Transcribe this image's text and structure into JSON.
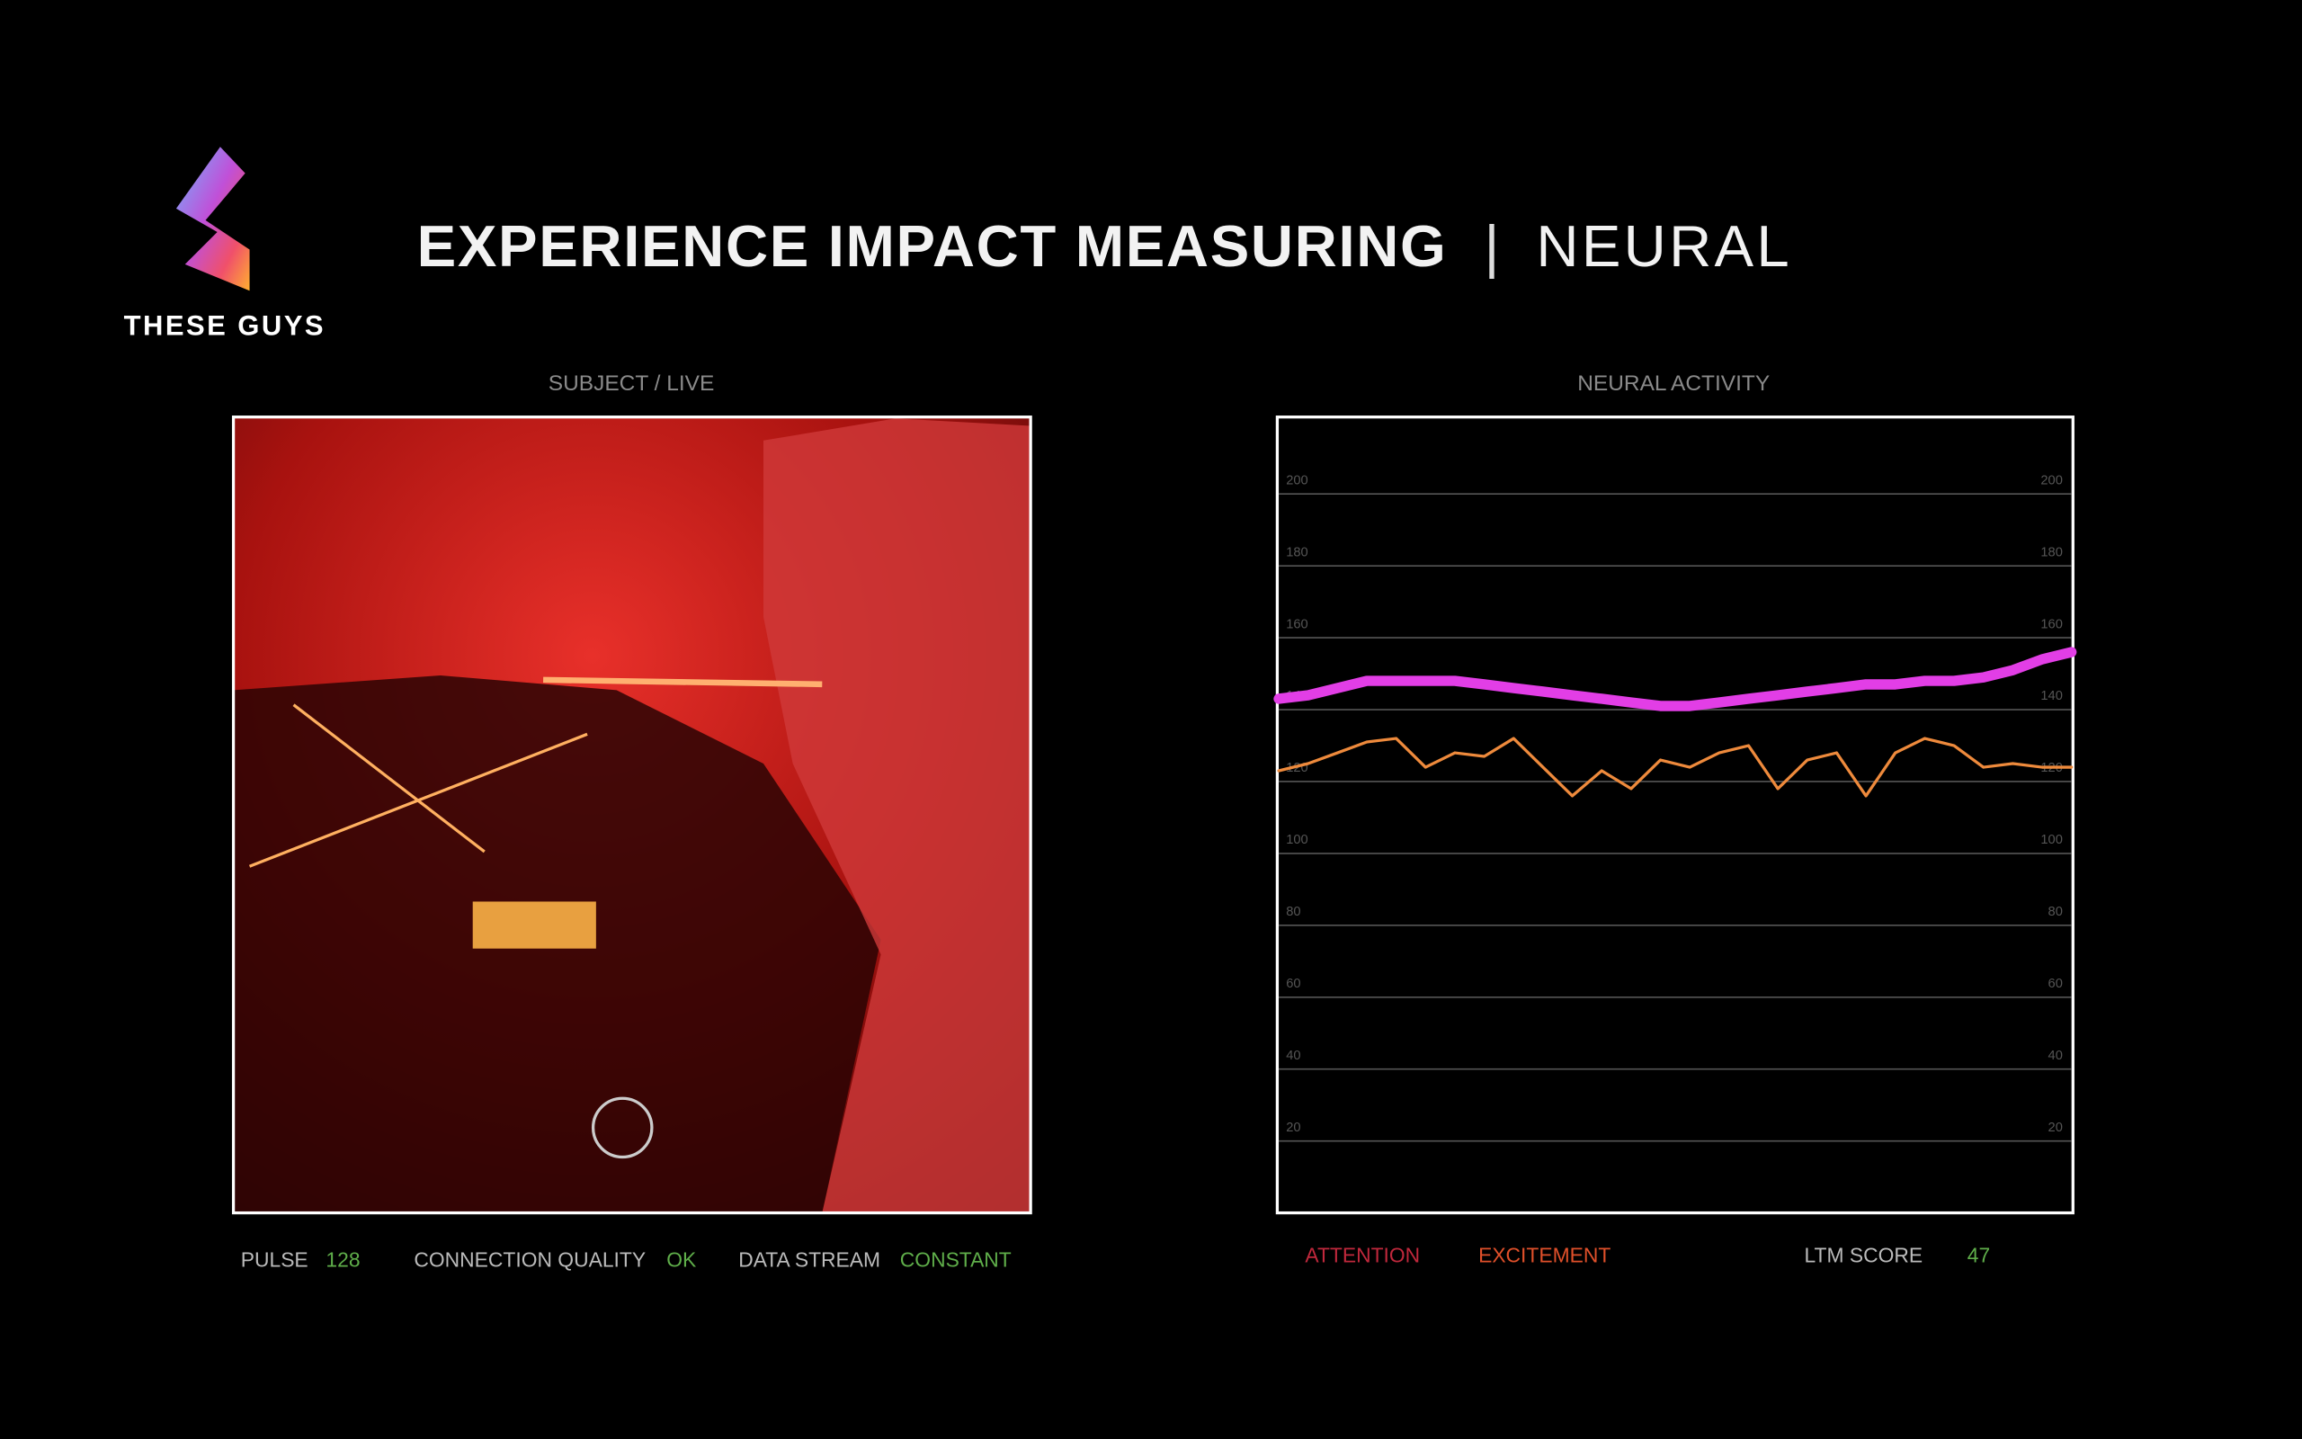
{
  "header": {
    "brand": "THESE GUYS",
    "title": "EXPERIENCE IMPACT MEASURING",
    "separator": "|",
    "subtitle": "NEURAL"
  },
  "video": {
    "label": "SUBJECT / LIVE",
    "stats": [
      {
        "name": "PULSE",
        "value": 128
      },
      {
        "name": "CONNECTION QUALITY",
        "value": "OK"
      },
      {
        "name": "DATA STREAM",
        "value": "CONSTANT"
      }
    ]
  },
  "ltm": {
    "label": "LTM SCORE",
    "value": 47
  },
  "chart_data": {
    "type": "line",
    "title": "NEURAL ACTIVITY",
    "categories": [
      null,
      null,
      null,
      null,
      null,
      null,
      null,
      null,
      null,
      null,
      null,
      null,
      null,
      null,
      null,
      null,
      null,
      null,
      null,
      null,
      null,
      null,
      null,
      null,
      null,
      null,
      null,
      null
    ],
    "series": [
      {
        "name": "ATTENTION",
        "color": "#e23ee6",
        "values": [
          143,
          144,
          146,
          148,
          148,
          148,
          148,
          147,
          146,
          145,
          144,
          143,
          142,
          141,
          141,
          142,
          143,
          144,
          145,
          146,
          147,
          147,
          148,
          148,
          149,
          151,
          154,
          156
        ]
      },
      {
        "name": "EXCITEMENT",
        "color": "#ee8a3c",
        "values": [
          123,
          125,
          128,
          131,
          132,
          124,
          128,
          127,
          132,
          124,
          116,
          123,
          118,
          126,
          124,
          128,
          130,
          118,
          126,
          128,
          116,
          128,
          132,
          130,
          124,
          125,
          124,
          124
        ]
      }
    ],
    "ylim": [
      0,
      221
    ],
    "yticks": [
      20,
      40,
      60,
      80,
      100,
      120,
      140,
      160,
      180,
      200
    ],
    "grid": true
  }
}
